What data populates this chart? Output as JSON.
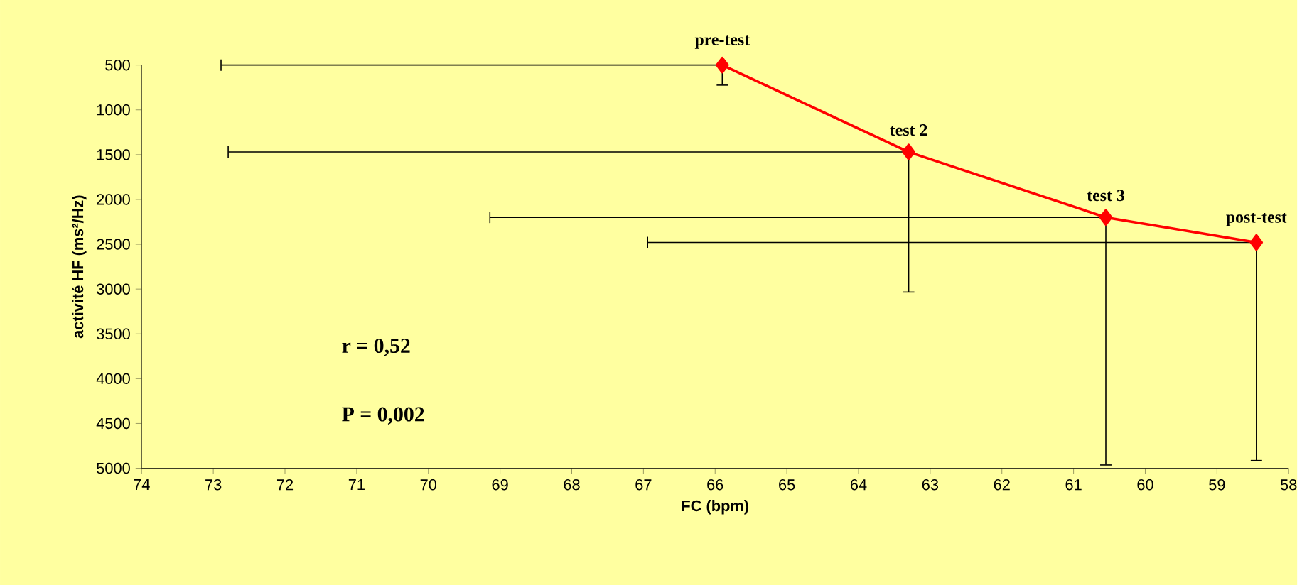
{
  "chart_data": {
    "type": "line",
    "xlabel": "FC (bpm)",
    "ylabel": "activité HF (ms²/Hz)",
    "xlim": [
      74,
      58
    ],
    "xticks": [
      74,
      73,
      72,
      71,
      70,
      69,
      68,
      67,
      66,
      65,
      64,
      63,
      62,
      61,
      60,
      59,
      58
    ],
    "ylim": [
      5000,
      500
    ],
    "yticks": [
      500,
      1000,
      1500,
      2000,
      2500,
      3000,
      3500,
      4000,
      4500,
      5000
    ],
    "grid": false,
    "marker": "diamond",
    "line_style": "solid",
    "series": [
      {
        "color": "#ff0000",
        "x": [
          65.9,
          63.3,
          60.55,
          58.45
        ],
        "values": [
          500,
          1470,
          2200,
          2480
        ],
        "errors": [
          [
            500,
            730
          ],
          [
            1470,
            3040
          ],
          [
            2200,
            4970
          ],
          [
            2480,
            4920
          ]
        ],
        "xerrors": [
          [
            65.9,
            72.9
          ],
          [
            63.3,
            72.8
          ],
          [
            60.55,
            69.15
          ],
          [
            58.45,
            66.95
          ]
        ]
      }
    ],
    "annotations": [
      {
        "text": "pre-test",
        "x": 65.9,
        "y": 500
      },
      {
        "text": "test 2",
        "x": 63.3,
        "y": 1470
      },
      {
        "text": "test 3",
        "x": 60.55,
        "y": 2200
      },
      {
        "text": "post-test",
        "x": 58.45,
        "y": 2480
      },
      "r = 0,52",
      "P = 0,002"
    ]
  }
}
